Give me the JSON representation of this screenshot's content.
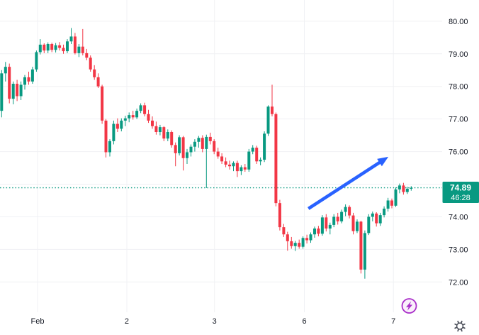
{
  "chart": {
    "theme": {
      "background": "#FFFFFF",
      "grid": "#F0F1F4",
      "text": "#131722",
      "up": "#089981",
      "down": "#F23645"
    },
    "price_line": {
      "label": "74.89",
      "countdown": "46:28",
      "color": "#089981"
    },
    "price_axis": {
      "ticks": [
        {
          "label": "80.00",
          "value": 80
        },
        {
          "label": "79.00",
          "value": 79
        },
        {
          "label": "78.00",
          "value": 78
        },
        {
          "label": "77.00",
          "value": 77
        },
        {
          "label": "76.00",
          "value": 76
        },
        {
          "label": "75.00",
          "value": 75
        },
        {
          "label": "74.00",
          "value": 74
        },
        {
          "label": "73.00",
          "value": 73
        },
        {
          "label": "72.00",
          "value": 72
        }
      ]
    },
    "icons": {
      "quick_action": "lightning-bolt-icon",
      "lightning_color": "#A92FC9",
      "lightning_fill": "#FAF0FB",
      "settings": "gear-icon",
      "gear_color": "#4A4E59"
    }
  },
  "chart_data": {
    "type": "candlestick",
    "ohlc_format": [
      "open",
      "high",
      "low",
      "close"
    ],
    "current_price": 74.89,
    "countdown": "46:28",
    "ylim": [
      71.07,
      80.65
    ],
    "price_gridlines": [
      80,
      79,
      78,
      77,
      76,
      75,
      74,
      73,
      72
    ],
    "time_ticks": [
      {
        "label": "Feb",
        "index": 9.3
      },
      {
        "label": "2",
        "index": 32.4
      },
      {
        "label": "3",
        "index": 55.1
      },
      {
        "label": "6",
        "index": 78.35
      },
      {
        "label": "7",
        "index": 101.4
      }
    ],
    "annotations": [
      {
        "type": "arrow",
        "from": [
          79.4,
          74.25
        ],
        "to": [
          100.1,
          75.84
        ],
        "color": "#2962FF"
      }
    ],
    "candles": [
      [
        77.25,
        78.5,
        77.05,
        78.4
      ],
      [
        78.4,
        78.75,
        78.15,
        78.6
      ],
      [
        78.6,
        78.7,
        77.48,
        77.62
      ],
      [
        77.62,
        78.15,
        77.45,
        78.08
      ],
      [
        78.08,
        78.2,
        77.55,
        77.7
      ],
      [
        77.7,
        78.15,
        77.58,
        78.05
      ],
      [
        78.05,
        78.35,
        77.9,
        78.28
      ],
      [
        78.28,
        78.45,
        78.05,
        78.15
      ],
      [
        78.15,
        78.6,
        78.08,
        78.52
      ],
      [
        78.52,
        79.1,
        78.45,
        79.05
      ],
      [
        79.05,
        79.45,
        78.98,
        79.28
      ],
      [
        79.28,
        79.32,
        79.02,
        79.1
      ],
      [
        79.1,
        79.35,
        79.02,
        79.3
      ],
      [
        79.3,
        79.34,
        79.05,
        79.12
      ],
      [
        79.12,
        79.33,
        79.04,
        79.26
      ],
      [
        79.26,
        79.36,
        79.1,
        79.18
      ],
      [
        79.18,
        79.28,
        79.0,
        79.08
      ],
      [
        79.08,
        79.45,
        79.02,
        79.38
      ],
      [
        79.38,
        79.79,
        79.3,
        79.53
      ],
      [
        79.53,
        79.64,
        78.98,
        79.02
      ],
      [
        79.02,
        79.3,
        78.9,
        79.22
      ],
      [
        79.22,
        79.76,
        78.95,
        79.02
      ],
      [
        79.02,
        79.15,
        78.8,
        78.88
      ],
      [
        78.88,
        78.95,
        78.45,
        78.52
      ],
      [
        78.52,
        78.65,
        78.2,
        78.28
      ],
      [
        78.28,
        78.4,
        77.95,
        78.0
      ],
      [
        78.0,
        78.05,
        76.85,
        76.95
      ],
      [
        76.95,
        77.0,
        75.82,
        75.98
      ],
      [
        75.98,
        76.38,
        75.85,
        76.32
      ],
      [
        76.32,
        76.95,
        76.22,
        76.85
      ],
      [
        76.85,
        77.02,
        76.6,
        76.7
      ],
      [
        76.7,
        77.02,
        76.62,
        76.95
      ],
      [
        76.95,
        77.1,
        76.78,
        77.02
      ],
      [
        77.02,
        77.2,
        76.9,
        77.12
      ],
      [
        77.12,
        77.25,
        76.98,
        77.05
      ],
      [
        77.05,
        77.32,
        77.0,
        77.25
      ],
      [
        77.25,
        77.48,
        77.18,
        77.42
      ],
      [
        77.42,
        77.5,
        77.08,
        77.15
      ],
      [
        77.15,
        77.28,
        76.88,
        76.95
      ],
      [
        76.95,
        77.08,
        76.7,
        76.78
      ],
      [
        76.78,
        76.92,
        76.52,
        76.6
      ],
      [
        76.6,
        76.82,
        76.5,
        76.75
      ],
      [
        76.75,
        76.78,
        76.32,
        76.4
      ],
      [
        76.4,
        76.68,
        76.32,
        76.6
      ],
      [
        76.6,
        76.65,
        76.12,
        76.2
      ],
      [
        76.2,
        76.28,
        75.55,
        75.95
      ],
      [
        75.95,
        76.5,
        75.88,
        76.44
      ],
      [
        76.44,
        76.48,
        75.42,
        75.8
      ],
      [
        75.8,
        76.08,
        75.62,
        75.98
      ],
      [
        75.98,
        76.22,
        75.85,
        76.15
      ],
      [
        76.15,
        76.38,
        76.0,
        76.3
      ],
      [
        76.3,
        76.48,
        76.12,
        76.42
      ],
      [
        76.42,
        76.5,
        75.98,
        76.08
      ],
      [
        76.08,
        76.52,
        74.88,
        76.45
      ],
      [
        76.45,
        76.58,
        76.22,
        76.32
      ],
      [
        76.32,
        76.38,
        75.92,
        76.0
      ],
      [
        76.0,
        76.12,
        75.78,
        75.85
      ],
      [
        75.85,
        75.95,
        75.62,
        75.7
      ],
      [
        75.7,
        75.82,
        75.52,
        75.6
      ],
      [
        75.6,
        75.72,
        75.45,
        75.55
      ],
      [
        75.55,
        75.7,
        75.4,
        75.65
      ],
      [
        75.65,
        75.72,
        75.22,
        75.4
      ],
      [
        75.4,
        75.58,
        75.28,
        75.52
      ],
      [
        75.52,
        75.62,
        75.38,
        75.45
      ],
      [
        75.45,
        76.08,
        75.38,
        76.0
      ],
      [
        76.0,
        76.2,
        75.92,
        76.12
      ],
      [
        76.12,
        76.18,
        75.62,
        75.7
      ],
      [
        75.7,
        75.82,
        75.58,
        75.75
      ],
      [
        75.75,
        76.62,
        75.68,
        76.55
      ],
      [
        76.55,
        77.42,
        76.48,
        77.38
      ],
      [
        77.38,
        78.05,
        77.08,
        77.15
      ],
      [
        77.15,
        77.2,
        74.32,
        74.42
      ],
      [
        74.42,
        74.52,
        73.58,
        73.68
      ],
      [
        73.68,
        73.78,
        73.38,
        73.46
      ],
      [
        73.46,
        73.54,
        72.96,
        73.25
      ],
      [
        73.25,
        73.38,
        73.02,
        73.1
      ],
      [
        73.1,
        73.26,
        72.95,
        73.2
      ],
      [
        73.2,
        73.3,
        73.02,
        73.08
      ],
      [
        73.08,
        73.4,
        73.02,
        73.35
      ],
      [
        73.35,
        73.45,
        73.18,
        73.28
      ],
      [
        73.28,
        73.52,
        73.2,
        73.46
      ],
      [
        73.46,
        73.7,
        73.36,
        73.64
      ],
      [
        73.64,
        73.72,
        73.4,
        73.48
      ],
      [
        73.48,
        74.05,
        73.42,
        73.98
      ],
      [
        73.98,
        74.08,
        73.55,
        73.64
      ],
      [
        73.64,
        73.82,
        73.46,
        73.75
      ],
      [
        73.75,
        74.08,
        73.68,
        74.0
      ],
      [
        74.0,
        74.12,
        73.76,
        73.86
      ],
      [
        73.86,
        74.22,
        73.8,
        74.15
      ],
      [
        74.15,
        74.38,
        74.02,
        74.3
      ],
      [
        74.3,
        74.35,
        73.95,
        74.04
      ],
      [
        74.04,
        74.12,
        73.46,
        73.56
      ],
      [
        73.56,
        73.92,
        73.5,
        73.85
      ],
      [
        73.85,
        73.88,
        72.26,
        72.38
      ],
      [
        72.38,
        73.58,
        72.1,
        73.5
      ],
      [
        73.5,
        74.08,
        73.44,
        74.0
      ],
      [
        74.0,
        74.16,
        73.86,
        74.1
      ],
      [
        74.1,
        74.14,
        73.7,
        73.8
      ],
      [
        73.8,
        74.12,
        73.72,
        74.05
      ],
      [
        74.05,
        74.32,
        73.98,
        74.25
      ],
      [
        74.25,
        74.58,
        74.16,
        74.5
      ],
      [
        74.5,
        74.56,
        74.26,
        74.34
      ],
      [
        74.34,
        74.9,
        74.3,
        74.84
      ],
      [
        74.84,
        75.02,
        74.72,
        74.96
      ],
      [
        74.96,
        75.04,
        74.68,
        74.76
      ],
      [
        74.76,
        74.92,
        74.7,
        74.86
      ],
      [
        74.86,
        74.94,
        74.8,
        74.89
      ]
    ]
  }
}
